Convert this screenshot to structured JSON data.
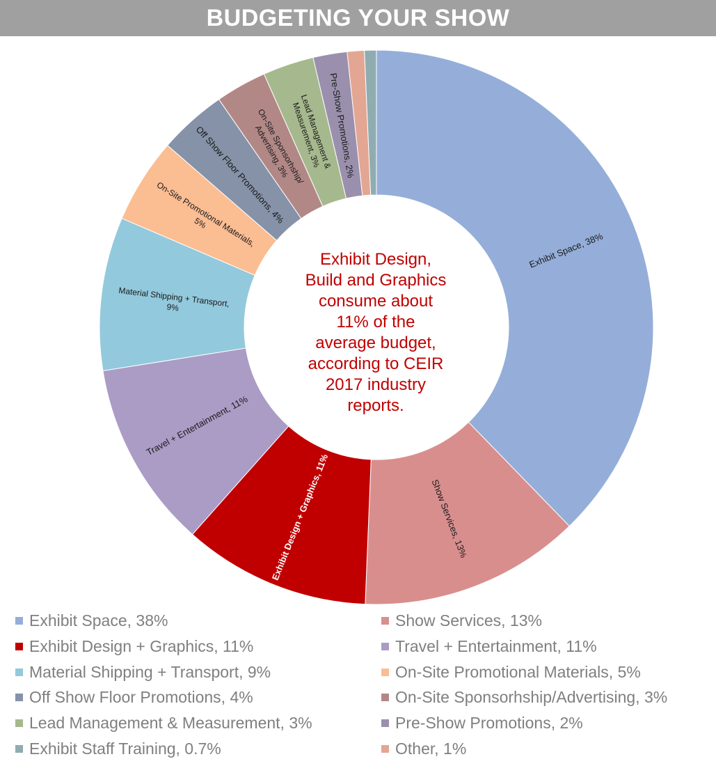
{
  "header": {
    "title": "BUDGETING YOUR SHOW"
  },
  "center_note": {
    "lines": [
      "Exhibit Design,",
      "Build and Graphics",
      "consume about",
      "11% of the",
      "average budget,",
      "according to CEIR",
      "2017 industry",
      "reports."
    ],
    "color": "#c00000"
  },
  "chart_data": {
    "type": "pie",
    "donut": true,
    "title": "BUDGETING YOUR SHOW",
    "slices": [
      {
        "label": "Exhibit Space, 38%",
        "value": 38,
        "color": "#95aed9",
        "slice_label": [
          "Exhibit Space, 38%"
        ]
      },
      {
        "label": "Show Services, 13%",
        "value": 13,
        "color": "#d98e8e",
        "slice_label": [
          "Show Services, 13%"
        ]
      },
      {
        "label": "Exhibit Design + Graphics, 11%",
        "value": 11,
        "color": "#c00000",
        "slice_label": [
          "Exhibit Design + Graphics, 11%"
        ]
      },
      {
        "label": "Travel + Entertainment, 11%",
        "value": 11,
        "color": "#ab9cc6",
        "slice_label": [
          "Travel + Entertainment, 11%"
        ]
      },
      {
        "label": "Material Shipping + Transport, 9%",
        "value": 9,
        "color": "#93c9dc",
        "slice_label": [
          "Material Shipping + Transport,",
          "9%"
        ]
      },
      {
        "label": "On-Site Promotional Materials, 5%",
        "value": 5,
        "color": "#fbbd92",
        "slice_label": [
          "On-Site Promotional Materials,",
          "5%"
        ]
      },
      {
        "label": "Off Show Floor Promotions, 4%",
        "value": 4,
        "color": "#8592a8",
        "slice_label": [
          "Off Show Floor Promotions, 4%"
        ]
      },
      {
        "label": "On-Site Sponsorhship/Advertising, 3%",
        "value": 3,
        "color": "#b28887",
        "slice_label": [
          "On-Site Sponsorhship/",
          "Advertising, 3%"
        ]
      },
      {
        "label": "Lead Management & Measurement, 3%",
        "value": 3,
        "color": "#a6b98e",
        "slice_label": [
          "Lead Management &",
          "Measurement, 3%"
        ]
      },
      {
        "label": "Pre-Show Promotions, 2%",
        "value": 2,
        "color": "#9a90ad",
        "slice_label": [
          "Pre-Show Promotions, 2%"
        ]
      },
      {
        "label": "Other, 1%",
        "value": 1,
        "color": "#e3a692",
        "slice_label": []
      },
      {
        "label": "Exhibit Staff Training, 0.7%",
        "value": 0.7,
        "color": "#8facb1",
        "slice_label": []
      }
    ],
    "legend": {
      "placement": "bottom",
      "items": [
        {
          "label": "Exhibit Space, 38%",
          "color": "#95aed9"
        },
        {
          "label": "Show Services, 13%",
          "color": "#d98e8e"
        },
        {
          "label": "Exhibit Design + Graphics, 11%",
          "color": "#c00000"
        },
        {
          "label": "Travel + Entertainment, 11%",
          "color": "#ab9cc6"
        },
        {
          "label": "Material Shipping + Transport, 9%",
          "color": "#93c9dc"
        },
        {
          "label": "On-Site Promotional Materials, 5%",
          "color": "#fbbd92"
        },
        {
          "label": "Off Show Floor Promotions, 4%",
          "color": "#8592a8"
        },
        {
          "label": "On-Site Sponsorhship/Advertising, 3%",
          "color": "#b28887"
        },
        {
          "label": "Lead Management & Measurement, 3%",
          "color": "#a6b98e"
        },
        {
          "label": "Pre-Show Promotions, 2%",
          "color": "#9a90ad"
        },
        {
          "label": "Exhibit Staff Training, 0.7%",
          "color": "#8facb1"
        },
        {
          "label": "Other, 1%",
          "color": "#e3a692"
        }
      ]
    }
  }
}
